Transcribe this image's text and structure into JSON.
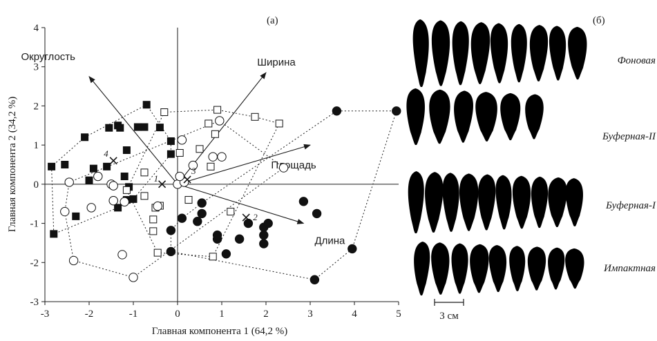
{
  "panel_a_label": "(а)",
  "panel_b_label": "(б)",
  "scale_bar_label": "3 см",
  "chart_data": {
    "type": "scatter",
    "xlabel": "Главная компонента 1 (64,2 %)",
    "ylabel": "Главная компонента 2 (34,2 %)",
    "xlim": [
      -3,
      5
    ],
    "ylim": [
      -3,
      4
    ],
    "x_ticks": [
      "-3",
      "-2",
      "-1",
      "0",
      "1",
      "2",
      "3",
      "4",
      "5"
    ],
    "y_ticks": [
      "-3",
      "-2",
      "-1",
      "0",
      "1",
      "2",
      "3",
      "4"
    ],
    "grid": false,
    "series": [
      {
        "marker": "filled-square",
        "points": [
          [
            -2.85,
            0.45
          ],
          [
            -2.55,
            0.5
          ],
          [
            -2.8,
            -1.27
          ],
          [
            -2.3,
            -0.82
          ],
          [
            -2.1,
            1.2
          ],
          [
            -2.0,
            0.1
          ],
          [
            -1.9,
            0.4
          ],
          [
            -1.55,
            1.44
          ],
          [
            -1.6,
            0.45
          ],
          [
            -1.35,
            1.5
          ],
          [
            -1.3,
            1.44
          ],
          [
            -1.15,
            0.87
          ],
          [
            -1.2,
            0.2
          ],
          [
            -1.1,
            -0.07
          ],
          [
            -1.15,
            -0.4
          ],
          [
            -1.0,
            -0.38
          ],
          [
            -0.9,
            1.46
          ],
          [
            -0.75,
            1.46
          ],
          [
            -0.7,
            2.03
          ],
          [
            -0.4,
            1.45
          ],
          [
            -0.15,
            1.1
          ],
          [
            -0.15,
            0.77
          ],
          [
            -1.35,
            -0.6
          ]
        ]
      },
      {
        "marker": "open-square",
        "points": [
          [
            -0.3,
            1.84
          ],
          [
            0.9,
            1.9
          ],
          [
            1.75,
            1.72
          ],
          [
            2.3,
            1.55
          ],
          [
            0.7,
            1.55
          ],
          [
            0.85,
            1.28
          ],
          [
            0.5,
            0.9
          ],
          [
            0.05,
            0.8
          ],
          [
            0.75,
            0.45
          ],
          [
            -0.75,
            0.3
          ],
          [
            -1.15,
            -0.15
          ],
          [
            -0.75,
            -0.3
          ],
          [
            -0.4,
            -0.55
          ],
          [
            -0.5,
            -0.6
          ],
          [
            0.25,
            -0.4
          ],
          [
            1.2,
            -0.7
          ],
          [
            -0.55,
            -0.9
          ],
          [
            -0.55,
            -1.2
          ],
          [
            -0.45,
            -1.75
          ],
          [
            0.8,
            -1.85
          ]
        ]
      },
      {
        "marker": "open-circle",
        "points": [
          [
            -2.55,
            -0.7
          ],
          [
            -2.35,
            -1.95
          ],
          [
            -2.45,
            0.05
          ],
          [
            -1.8,
            0.2
          ],
          [
            -1.5,
            0.0
          ],
          [
            -1.45,
            -0.04
          ],
          [
            -1.45,
            -0.42
          ],
          [
            -1.45,
            -0.42
          ],
          [
            -1.95,
            -0.6
          ],
          [
            -1.2,
            -0.45
          ],
          [
            -1.25,
            -1.8
          ],
          [
            -1.0,
            -2.38
          ],
          [
            -0.45,
            -0.56
          ],
          [
            0.1,
            1.13
          ],
          [
            0.95,
            1.62
          ],
          [
            1.0,
            0.7
          ],
          [
            0.35,
            0.48
          ],
          [
            0.8,
            0.7
          ],
          [
            2.4,
            0.42
          ],
          [
            0.0,
            0.0
          ],
          [
            0.15,
            0.05
          ],
          [
            0.05,
            0.2
          ]
        ]
      },
      {
        "marker": "filled-circle",
        "points": [
          [
            3.6,
            1.87
          ],
          [
            4.95,
            1.87
          ],
          [
            -0.15,
            -1.18
          ],
          [
            0.1,
            -0.87
          ],
          [
            0.45,
            -0.95
          ],
          [
            0.55,
            -0.48
          ],
          [
            0.55,
            -0.75
          ],
          [
            0.9,
            -1.4
          ],
          [
            0.9,
            -1.3
          ],
          [
            1.1,
            -1.78
          ],
          [
            1.4,
            -1.4
          ],
          [
            1.6,
            -1.0
          ],
          [
            1.95,
            -1.1
          ],
          [
            1.95,
            -1.3
          ],
          [
            1.95,
            -1.52
          ],
          [
            2.05,
            -1.0
          ],
          [
            2.85,
            -0.44
          ],
          [
            3.15,
            -0.75
          ],
          [
            3.95,
            -1.65
          ],
          [
            3.1,
            -2.44
          ],
          [
            -0.15,
            -1.72
          ]
        ]
      }
    ],
    "centroids": [
      {
        "label": "1",
        "x": -0.35,
        "y": 0.0
      },
      {
        "label": "2",
        "x": 1.55,
        "y": -0.85
      },
      {
        "label": "3",
        "x": 0.22,
        "y": 0.12
      },
      {
        "label": "4",
        "x": -1.45,
        "y": 0.6
      }
    ],
    "loadings": [
      {
        "label": "Округлость",
        "x": -2.0,
        "y": 2.75
      },
      {
        "label": "Ширина",
        "x": 2.0,
        "y": 2.85
      },
      {
        "label": "Площадь",
        "x": 3.0,
        "y": 1.0
      },
      {
        "label": "Длина",
        "x": 2.85,
        "y": -1.0
      }
    ]
  },
  "leaf_rows": [
    {
      "zone": "Фоновая",
      "count": 9
    },
    {
      "zone": "Буферная-II",
      "count": 6
    },
    {
      "zone": "Буферная-I",
      "count": 10
    },
    {
      "zone": "Импактная",
      "count": 9
    }
  ]
}
